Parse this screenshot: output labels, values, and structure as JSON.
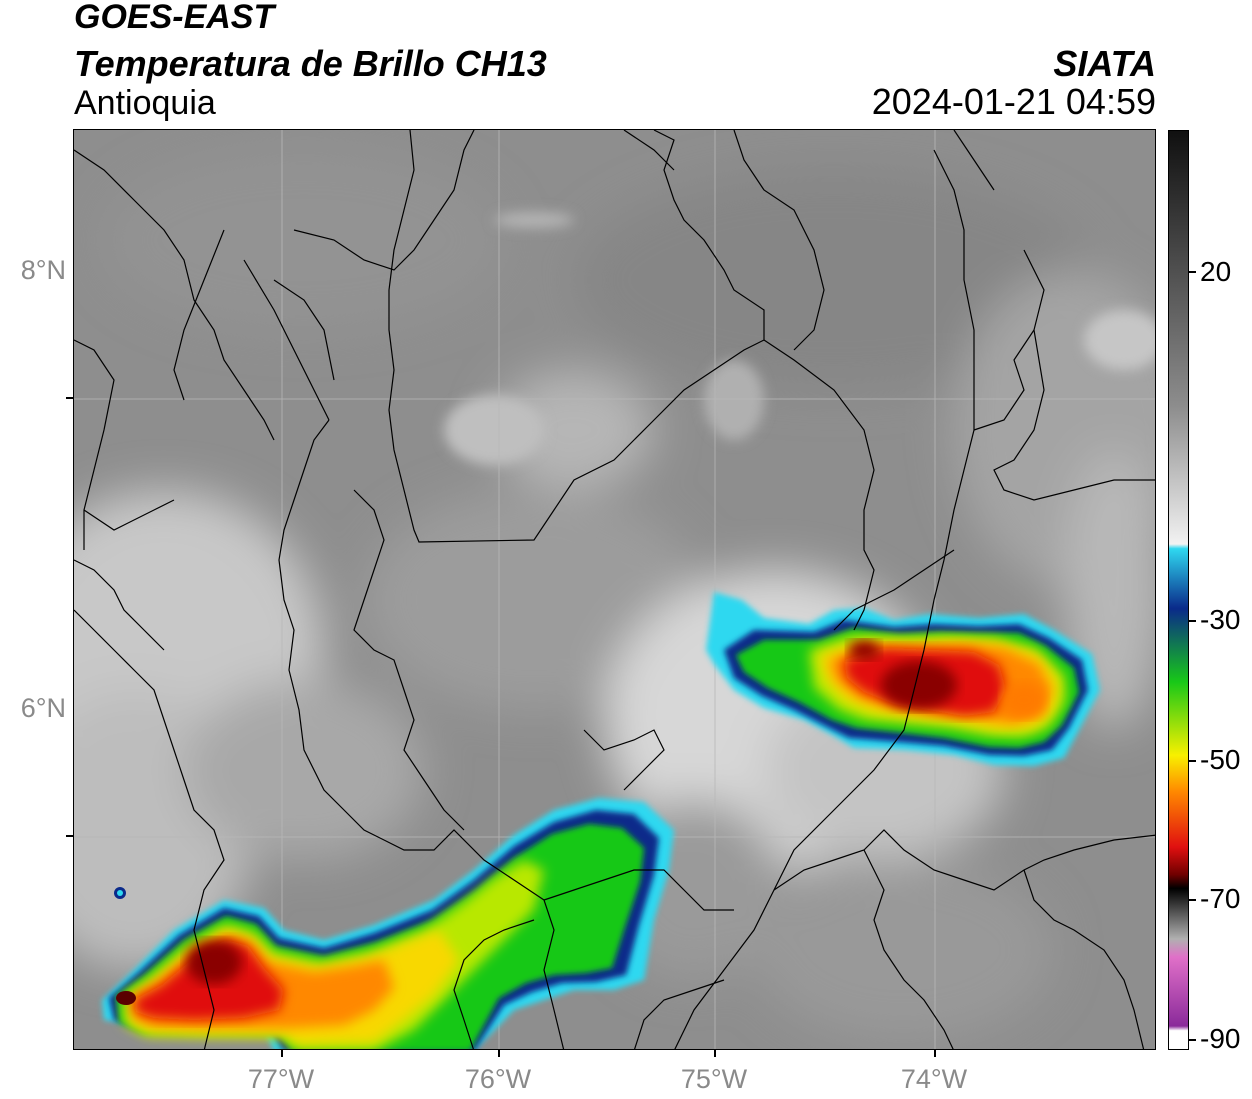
{
  "header": {
    "satellite": "GOES-EAST",
    "product": "Temperatura de Brillo CH13",
    "region": "Antioquia",
    "source": "SIATA",
    "datetime": "2024-01-21 04:59"
  },
  "map": {
    "latitude_labels": [
      "8°N",
      "6°N"
    ],
    "longitude_labels": [
      "77°W",
      "76°W",
      "75°W",
      "74°W"
    ]
  },
  "colorbar": {
    "tick_labels": [
      "20",
      "-30",
      "-50",
      "-70",
      "-90"
    ],
    "colors": {
      "warm_gray_top": "#101010",
      "mid_gray": "#8d8d8d",
      "light": "#f2f2f2",
      "cyan": "#2fd8f0",
      "dark_blue": "#0a2a8a",
      "green": "#18c818",
      "yellow": "#f8f000",
      "orange": "#ff8800",
      "red": "#e01010",
      "dark_red": "#700000",
      "black": "#000000",
      "pink": "#e070c8",
      "purple": "#8a2a9a"
    }
  }
}
